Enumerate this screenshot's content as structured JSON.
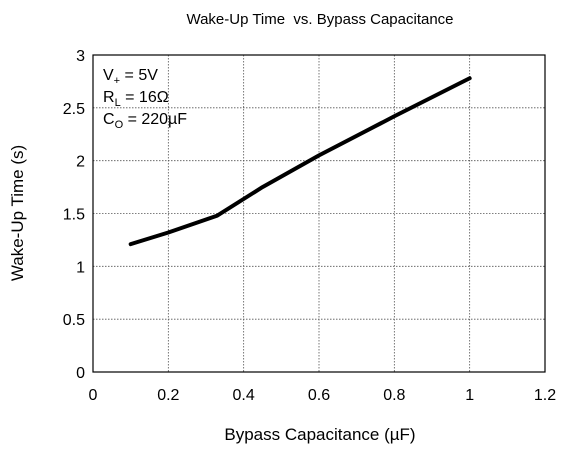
{
  "chart_data": {
    "type": "line",
    "title": "Wake-Up Time  vs. Bypass Capacitance",
    "xlabel": "Bypass Capacitance (µF)",
    "ylabel": "Wake-Up Time (s)",
    "annotations": [
      {
        "main": "V",
        "sub": "+",
        "rest": " = 5V"
      },
      {
        "main": "R",
        "sub": "L",
        "rest": " = 16Ω"
      },
      {
        "main": "C",
        "sub": "O",
        "rest": " = 220µF"
      }
    ],
    "x": [
      0.1,
      0.2,
      0.33,
      0.45,
      0.6,
      0.8,
      1.0
    ],
    "series": [
      {
        "color": "#000000",
        "values": [
          1.21,
          1.32,
          1.48,
          1.75,
          2.05,
          2.42,
          2.78
        ]
      }
    ],
    "xlim": [
      0,
      1.2
    ],
    "xticks": [
      0,
      0.2,
      0.4,
      0.6,
      0.8,
      1,
      1.2
    ],
    "ylim": [
      0,
      3
    ],
    "yticks": [
      0,
      0.5,
      1,
      1.5,
      2,
      2.5,
      3
    ],
    "grid": true
  }
}
